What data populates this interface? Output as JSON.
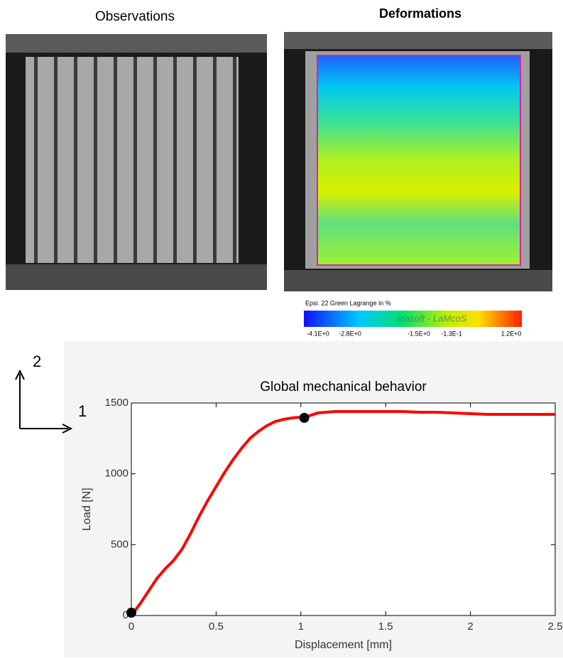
{
  "panels": {
    "left_title": "Observations",
    "right_title": "Deformations"
  },
  "colorbar": {
    "title": "Epsi. 22 Green Lagrange in %",
    "watermark": "Icasoft - LaMcoS",
    "labels": [
      "-4.1E+0",
      "-2.8E+0",
      "-1.5E+0",
      "-1.3E-1",
      "1.2E+0"
    ]
  },
  "axes_diagram": {
    "vertical": "2",
    "horizontal": "1"
  },
  "chart_data": {
    "type": "line",
    "title": "Global mechanical behavior",
    "x_label": "Displacement [mm]",
    "y_label": "Load [N]",
    "x": [
      0,
      0.05,
      0.1,
      0.15,
      0.2,
      0.25,
      0.3,
      0.35,
      0.4,
      0.45,
      0.5,
      0.55,
      0.6,
      0.65,
      0.7,
      0.75,
      0.8,
      0.85,
      0.9,
      0.95,
      1.0,
      1.05,
      1.1,
      1.2,
      1.3,
      1.4,
      1.5,
      1.6,
      1.7,
      1.8,
      1.9,
      2.0,
      2.1,
      2.2,
      2.3,
      2.4,
      2.5
    ],
    "series": [
      {
        "color": "#ff0000",
        "values": [
          0,
          80,
          170,
          260,
          330,
          390,
          470,
          580,
          700,
          810,
          910,
          1010,
          1100,
          1180,
          1250,
          1300,
          1340,
          1370,
          1385,
          1395,
          1400,
          1410,
          1430,
          1440,
          1440,
          1440,
          1440,
          1440,
          1435,
          1435,
          1430,
          1425,
          1420,
          1420,
          1420,
          1420,
          1420
        ]
      }
    ],
    "markers": {
      "color": "#000000",
      "x": [
        0,
        1.02
      ],
      "values": [
        20,
        1395
      ]
    },
    "xlim": [
      0,
      2.5
    ],
    "ylim": [
      0,
      1500
    ],
    "xticks": [
      0,
      0.5,
      1,
      1.5,
      2,
      2.5
    ],
    "yticks": [
      0,
      500,
      1000,
      1500
    ],
    "grid": false
  }
}
